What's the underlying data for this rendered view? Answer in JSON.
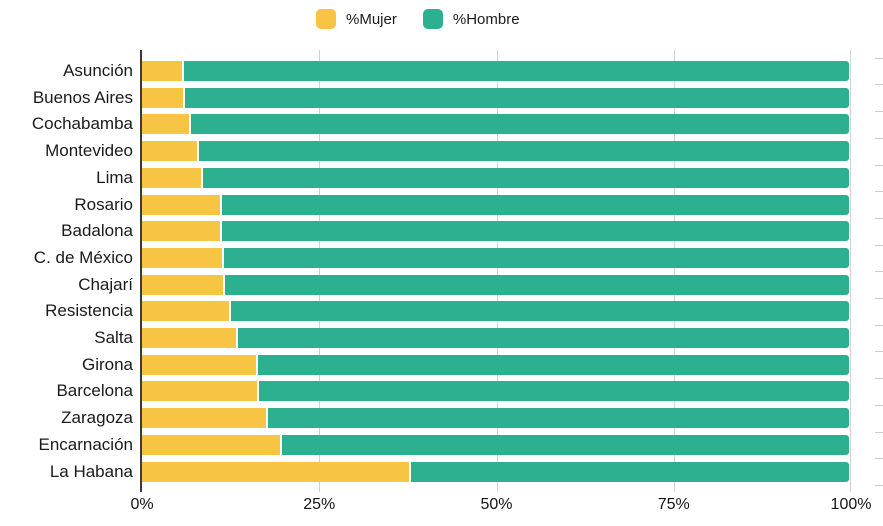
{
  "legend": {
    "position": "top-center",
    "items": [
      {
        "label": "%Mujer",
        "color": "#F7C443"
      },
      {
        "label": "%Hombre",
        "color": "#2CB08F"
      }
    ]
  },
  "colors": {
    "mujer": "#F7C443",
    "hombre": "#2CB08F",
    "gridline": "#d2d2d2",
    "axis_line": "#3a3a3a",
    "text": "#1a1a1a"
  },
  "chart_data": {
    "type": "bar",
    "orientation": "horizontal",
    "stacked": true,
    "title": "",
    "xlabel": "",
    "ylabel": "",
    "xlim": [
      0,
      100
    ],
    "x_tick_labels": [
      "0%",
      "25%",
      "50%",
      "75%",
      "100%"
    ],
    "grid": "vertical",
    "legend_position": "top-center",
    "categories": [
      "Asunción",
      "Buenos Aires",
      "Cochabamba",
      "Montevideo",
      "Lima",
      "Rosario",
      "Badalona",
      "C. de México",
      "Chajarí",
      "Resistencia",
      "Salta",
      "Girona",
      "Barcelona",
      "Zaragoza",
      "Encarnación",
      "La Habana"
    ],
    "series": [
      {
        "name": "%Mujer",
        "color": "#F7C443",
        "values": [
          5.6,
          5.8,
          6.6,
          7.8,
          8.3,
          11.0,
          11.1,
          11.3,
          11.5,
          12.3,
          13.3,
          16.1,
          16.3,
          17.6,
          19.5,
          37.8
        ]
      },
      {
        "name": "%Hombre",
        "color": "#2CB08F",
        "values": [
          94.4,
          94.2,
          93.4,
          92.2,
          91.7,
          89.0,
          88.9,
          88.7,
          88.5,
          87.7,
          86.7,
          83.9,
          83.7,
          82.4,
          80.5,
          62.2
        ]
      }
    ]
  }
}
